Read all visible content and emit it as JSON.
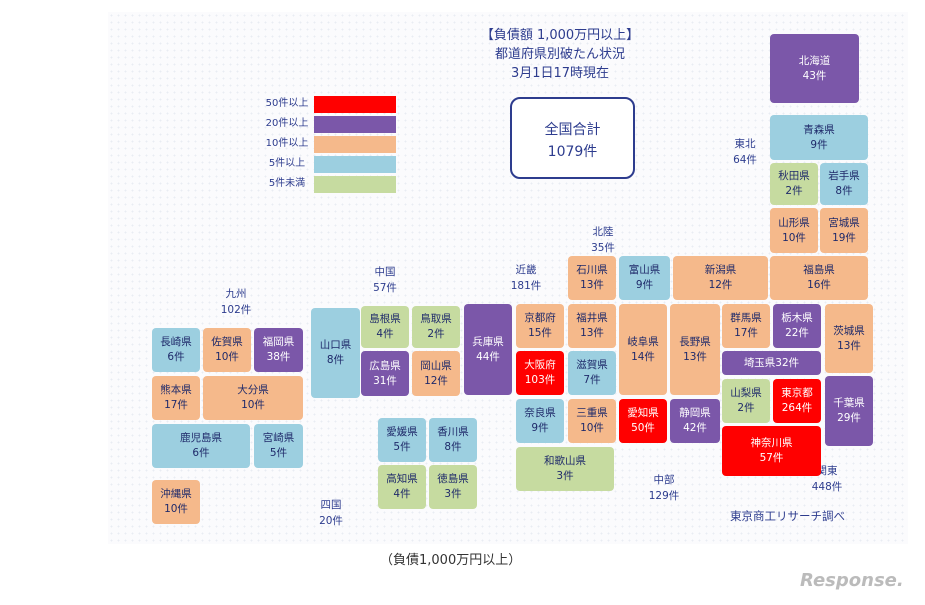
{
  "title": {
    "line1": "【負債額 1,000万円以上】",
    "line2": "都道府県別破たん状況",
    "line3": "3月1日17時現在"
  },
  "total": {
    "label": "全国合計",
    "value": "1079件"
  },
  "legend": [
    {
      "label": "50件以上",
      "color": "#ff0000"
    },
    {
      "label": "20件以上",
      "color": "#7b57a9"
    },
    {
      "label": "10件以上",
      "color": "#f5b98b"
    },
    {
      "label": "5件以上",
      "color": "#9ccfe0"
    },
    {
      "label": "5件未満",
      "color": "#c6dba0"
    }
  ],
  "regions": [
    {
      "name": "北海道",
      "count": ""
    },
    {
      "name": "東北",
      "count": "64件"
    },
    {
      "name": "北陸",
      "count": "35件"
    },
    {
      "name": "中国",
      "count": "57件"
    },
    {
      "name": "近畿",
      "count": "181件"
    },
    {
      "name": "九州",
      "count": "102件"
    },
    {
      "name": "四国",
      "count": "20件"
    },
    {
      "name": "中部",
      "count": "129件"
    },
    {
      "name": "関東",
      "count": "448件"
    }
  ],
  "prefectures": [
    {
      "name": "北海道",
      "count": "43件",
      "level": "20"
    },
    {
      "name": "青森県",
      "count": "9件",
      "level": "5"
    },
    {
      "name": "秋田県",
      "count": "2件",
      "level": "lt5"
    },
    {
      "name": "岩手県",
      "count": "8件",
      "level": "5"
    },
    {
      "name": "山形県",
      "count": "10件",
      "level": "10"
    },
    {
      "name": "宮城県",
      "count": "19件",
      "level": "10"
    },
    {
      "name": "福島県",
      "count": "16件",
      "level": "10"
    },
    {
      "name": "新潟県",
      "count": "12件",
      "level": "10"
    },
    {
      "name": "石川県",
      "count": "13件",
      "level": "10"
    },
    {
      "name": "富山県",
      "count": "9件",
      "level": "5"
    },
    {
      "name": "福井県",
      "count": "13件",
      "level": "10"
    },
    {
      "name": "京都府",
      "count": "15件",
      "level": "10"
    },
    {
      "name": "兵庫県",
      "count": "44件",
      "level": "20"
    },
    {
      "name": "大阪府",
      "count": "103件",
      "level": "50"
    },
    {
      "name": "滋賀県",
      "count": "7件",
      "level": "5"
    },
    {
      "name": "奈良県",
      "count": "9件",
      "level": "5"
    },
    {
      "name": "三重県",
      "count": "10件",
      "level": "10"
    },
    {
      "name": "和歌山県",
      "count": "3件",
      "level": "lt5"
    },
    {
      "name": "岐阜県",
      "count": "14件",
      "level": "10"
    },
    {
      "name": "長野県",
      "count": "13件",
      "level": "10"
    },
    {
      "name": "愛知県",
      "count": "50件",
      "level": "50"
    },
    {
      "name": "静岡県",
      "count": "42件",
      "level": "20"
    },
    {
      "name": "群馬県",
      "count": "17件",
      "level": "10"
    },
    {
      "name": "栃木県",
      "count": "22件",
      "level": "20"
    },
    {
      "name": "茨城県",
      "count": "13件",
      "level": "10"
    },
    {
      "name": "埼玉県32件",
      "count": "",
      "level": "20"
    },
    {
      "name": "山梨県",
      "count": "2件",
      "level": "lt5"
    },
    {
      "name": "東京都",
      "count": "264件",
      "level": "50"
    },
    {
      "name": "千葉県",
      "count": "29件",
      "level": "20"
    },
    {
      "name": "神奈川県",
      "count": "57件",
      "level": "50"
    },
    {
      "name": "山口県",
      "count": "8件",
      "level": "5"
    },
    {
      "name": "島根県",
      "count": "4件",
      "level": "lt5"
    },
    {
      "name": "鳥取県",
      "count": "2件",
      "level": "lt5"
    },
    {
      "name": "広島県",
      "count": "31件",
      "level": "20"
    },
    {
      "name": "岡山県",
      "count": "12件",
      "level": "10"
    },
    {
      "name": "愛媛県",
      "count": "5件",
      "level": "5"
    },
    {
      "name": "香川県",
      "count": "8件",
      "level": "5"
    },
    {
      "name": "高知県",
      "count": "4件",
      "level": "lt5"
    },
    {
      "name": "徳島県",
      "count": "3件",
      "level": "lt5"
    },
    {
      "name": "長崎県",
      "count": "6件",
      "level": "5"
    },
    {
      "name": "佐賀県",
      "count": "10件",
      "level": "10"
    },
    {
      "name": "福岡県",
      "count": "38件",
      "level": "20"
    },
    {
      "name": "熊本県",
      "count": "17件",
      "level": "10"
    },
    {
      "name": "大分県",
      "count": "10件",
      "level": "10"
    },
    {
      "name": "鹿児島県",
      "count": "6件",
      "level": "5"
    },
    {
      "name": "宮崎県",
      "count": "5件",
      "level": "5"
    },
    {
      "name": "沖縄県",
      "count": "10件",
      "level": "10"
    }
  ],
  "credit": "東京商工リサーチ調べ",
  "caption": "（負債1,000万円以上）",
  "watermark": "Response."
}
